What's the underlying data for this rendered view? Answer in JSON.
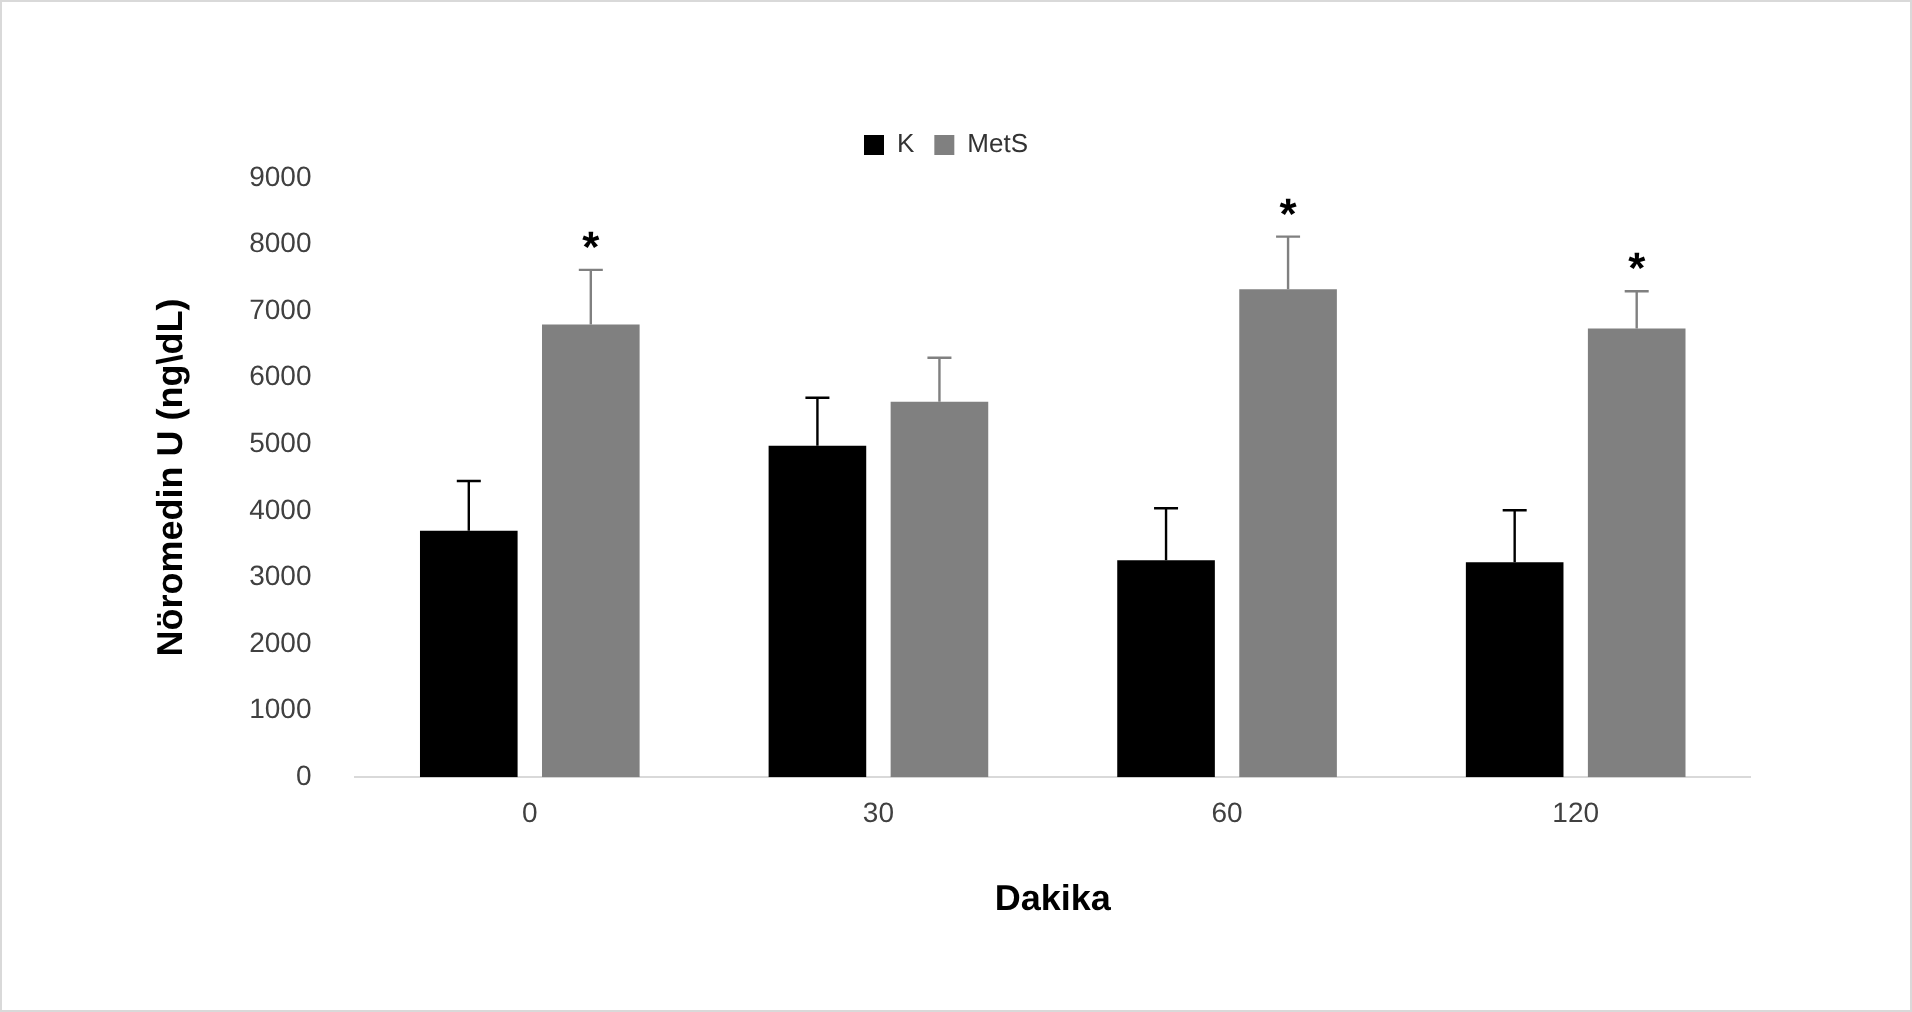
{
  "chart_data": {
    "type": "bar",
    "xlabel": "Dakika",
    "ylabel": "Nöromedin U (ng\\dL)",
    "categories": [
      "0",
      "30",
      "60",
      "120"
    ],
    "series": [
      {
        "name": "K",
        "color": "#000000",
        "values": [
          3700,
          4980,
          3260,
          3230
        ],
        "errors": [
          [
            3700,
            4450
          ],
          [
            4980,
            5700
          ],
          [
            3260,
            4040
          ],
          [
            3230,
            4010
          ]
        ]
      },
      {
        "name": "MetS",
        "color": "#808080",
        "values": [
          6800,
          5640,
          7330,
          6740
        ],
        "errors": [
          [
            6800,
            7620
          ],
          [
            5640,
            6300
          ],
          [
            7330,
            8120
          ],
          [
            6740,
            7300
          ]
        ]
      }
    ],
    "ylim": [
      0,
      9000
    ],
    "yticks": [
      0,
      1000,
      2000,
      3000,
      4000,
      5000,
      6000,
      7000,
      8000,
      9000
    ],
    "grid": false,
    "legend": "top",
    "annotations": [
      "*",
      "*",
      "*"
    ]
  }
}
